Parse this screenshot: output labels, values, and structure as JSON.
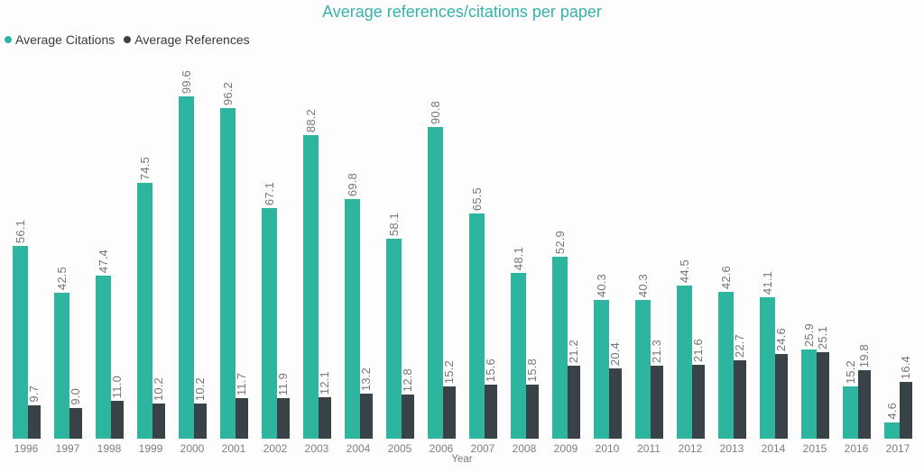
{
  "title": "Average references/citations per paper",
  "xlabel": "Year",
  "legend": [
    {
      "label": "Average Citations",
      "color": "#2db5a0"
    },
    {
      "label": "Average References",
      "color": "#384247"
    }
  ],
  "colors": {
    "title": "#35b2ab",
    "citations_bar": "#2db5a0",
    "references_bar": "#384247",
    "value_label": "#767676",
    "axis_label": "#7f7f7f"
  },
  "chart_data": {
    "type": "bar",
    "title": "Average references/citations per paper",
    "categories": [
      "1996",
      "1997",
      "1998",
      "1999",
      "2000",
      "2001",
      "2002",
      "2003",
      "2004",
      "2005",
      "2006",
      "2007",
      "2008",
      "2009",
      "2010",
      "2011",
      "2012",
      "2013",
      "2014",
      "2015",
      "2016",
      "2017"
    ],
    "series": [
      {
        "name": "Average Citations",
        "color": "#2db5a0",
        "values": [
          56.1,
          42.5,
          47.4,
          74.5,
          99.6,
          96.2,
          67.1,
          88.2,
          69.8,
          58.1,
          90.8,
          65.5,
          48.1,
          52.9,
          40.3,
          40.3,
          44.5,
          42.6,
          41.1,
          25.9,
          15.2,
          4.6
        ]
      },
      {
        "name": "Average References",
        "color": "#384247",
        "values": [
          9.7,
          9.0,
          11.0,
          10.2,
          10.2,
          11.7,
          11.9,
          12.1,
          13.2,
          12.8,
          15.2,
          15.6,
          15.8,
          21.2,
          20.4,
          21.3,
          21.6,
          22.7,
          24.6,
          25.1,
          19.8,
          16.4
        ]
      }
    ],
    "xlabel": "Year",
    "ylabel": "",
    "ylim": [
      0,
      100
    ],
    "data_labels": true,
    "data_label_rotation": -90,
    "grid": false,
    "legend_position": "top-left"
  }
}
